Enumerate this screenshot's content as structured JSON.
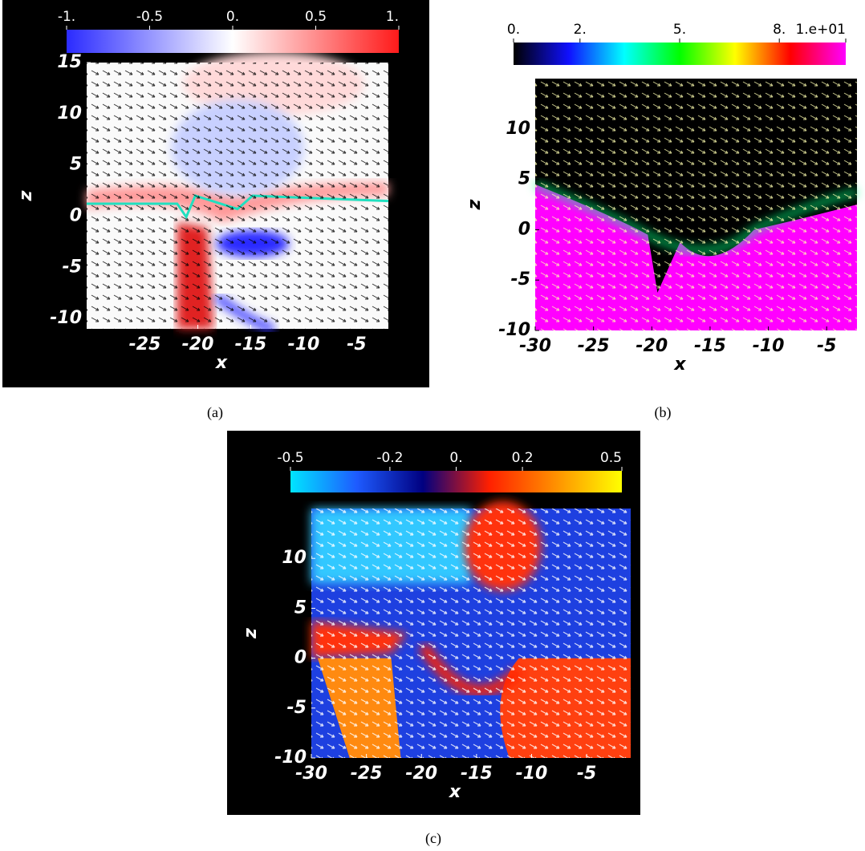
{
  "chart_data": [
    {
      "type": "heatmap",
      "xlabel": "x",
      "ylabel": "z",
      "caption": "(a)",
      "xlim": [
        -30.5,
        -2
      ],
      "ylim": [
        -11,
        15
      ],
      "xticks": [
        -25,
        -20,
        -15,
        -10,
        -5
      ],
      "yticks": [
        -10,
        -5,
        0,
        5,
        10,
        15
      ],
      "colorbar": {
        "lim": [
          -1,
          1
        ],
        "colors": [
          "#2b2bff",
          "#ffffff",
          "#ff1a1a"
        ],
        "ticks": [
          {
            "value": -1,
            "label": "-1."
          },
          -0.5,
          {
            "value": 0,
            "label": "0."
          },
          0.5,
          {
            "value": 1,
            "label": "1."
          }
        ]
      },
      "arrow_color": "#000000"
    },
    {
      "type": "heatmap",
      "xlabel": "x",
      "ylabel": "z",
      "caption": "(b)",
      "xlim": [
        -30,
        -2.4
      ],
      "ylim": [
        -10,
        15
      ],
      "xticks": [
        -30,
        -25,
        -20,
        -15,
        -10,
        -5
      ],
      "yticks": [
        -10,
        -5,
        0,
        5,
        10
      ],
      "colorbar": {
        "lim": [
          0,
          10
        ],
        "colors": [
          "#000000",
          "#1010ff",
          "#00ffff",
          "#00ff00",
          "#ffff00",
          "#ff0000",
          "#ff00ff"
        ],
        "ticks": [
          {
            "value": 0,
            "label": "0."
          },
          {
            "value": 2,
            "label": "2."
          },
          {
            "value": 5,
            "label": "5."
          },
          {
            "value": 8,
            "label": "8."
          },
          {
            "value": 10,
            "label": "1.e+01"
          }
        ]
      },
      "arrow_color": "#ffffb0"
    },
    {
      "type": "heatmap",
      "xlabel": "x",
      "ylabel": "z",
      "caption": "(c)",
      "xlim": [
        -30,
        -1
      ],
      "ylim": [
        -10,
        15
      ],
      "xticks": [
        -30,
        -25,
        -20,
        -15,
        -10,
        -5
      ],
      "yticks": [
        -10,
        -5,
        0,
        5,
        10
      ],
      "colorbar": {
        "lim": [
          -0.5,
          0.5
        ],
        "colors": [
          "#00e5ff",
          "#1e5bff",
          "#000080",
          "#ff2000",
          "#ff9000",
          "#ffff00"
        ],
        "ticks": [
          -0.5,
          -0.2,
          {
            "value": 0,
            "label": "0."
          },
          0.2,
          0.5
        ]
      },
      "arrow_color": "#ffffff"
    }
  ]
}
